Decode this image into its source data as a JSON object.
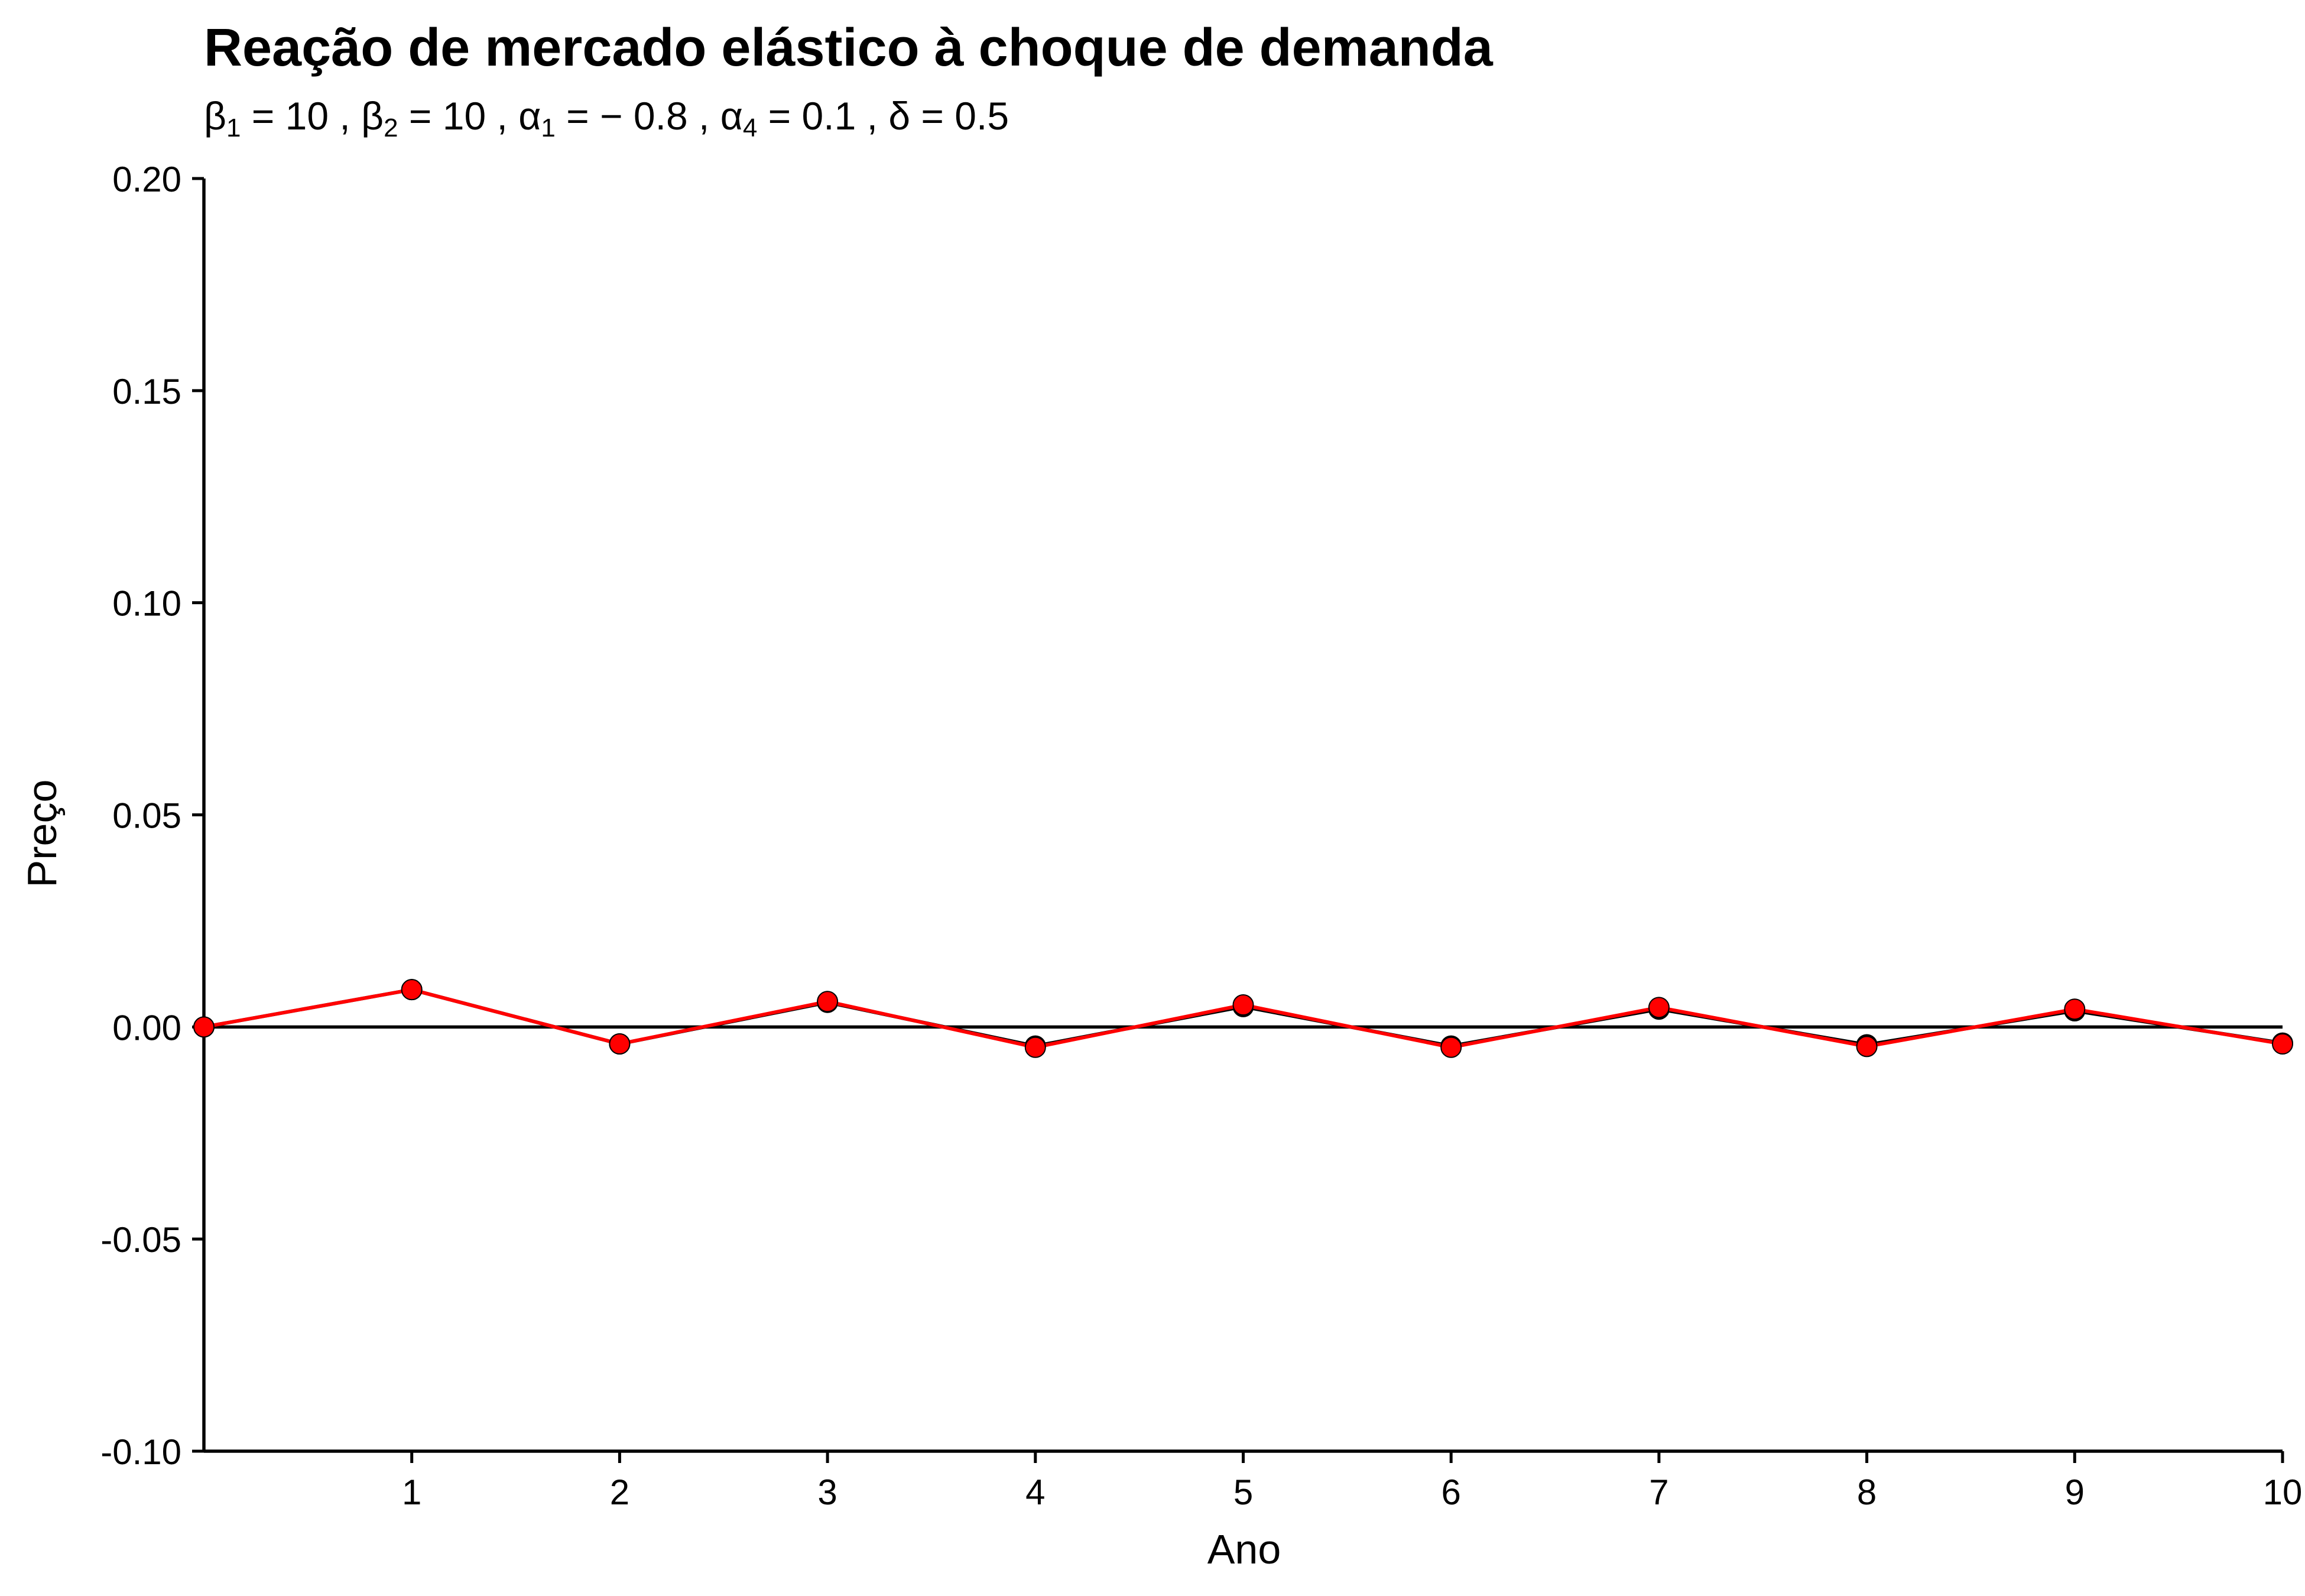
{
  "chart_data": {
    "type": "line",
    "title": "Reação de mercado elástico à choque de demanda",
    "subtitle": {
      "parts": [
        {
          "sym": "β",
          "sub": "1",
          "val": " = 10 , "
        },
        {
          "sym": "β",
          "sub": "2",
          "val": " = 10 , "
        },
        {
          "sym": "α",
          "sub": "1",
          "val": " = − 0.8 , "
        },
        {
          "sym": "α",
          "sub": "4",
          "val": " = 0.1 , "
        },
        {
          "sym": "δ",
          "sub": "",
          "val": " = 0.5"
        }
      ]
    },
    "xlabel": "Ano",
    "ylabel": "Preço",
    "xlim": [
      0,
      10
    ],
    "ylim": [
      -0.1,
      0.2
    ],
    "x_ticks": [
      1,
      2,
      3,
      4,
      5,
      6,
      7,
      8,
      9,
      10
    ],
    "y_ticks": [
      -0.1,
      -0.05,
      0.0,
      0.05,
      0.1,
      0.15,
      0.2
    ],
    "y_tick_labels": [
      "-0.10",
      "-0.05",
      "0.00",
      "0.05",
      "0.10",
      "0.15",
      "0.20"
    ],
    "reference_line_y": 0,
    "grid": false,
    "series": [
      {
        "color": "#000000",
        "x": [
          0,
          1,
          2,
          3,
          4,
          5,
          6,
          7,
          8,
          9,
          10
        ],
        "values": [
          0.0,
          0.0088,
          -0.004,
          0.0058,
          -0.0045,
          0.0048,
          -0.0045,
          0.0042,
          -0.0042,
          0.0038,
          -0.0038
        ]
      },
      {
        "color": "#ff0000",
        "x": [
          0,
          1,
          2,
          3,
          4,
          5,
          6,
          7,
          8,
          9,
          10
        ],
        "values": [
          0.0,
          0.0088,
          -0.004,
          0.006,
          -0.0048,
          0.0052,
          -0.0048,
          0.0046,
          -0.0046,
          0.0042,
          -0.004
        ]
      }
    ]
  }
}
